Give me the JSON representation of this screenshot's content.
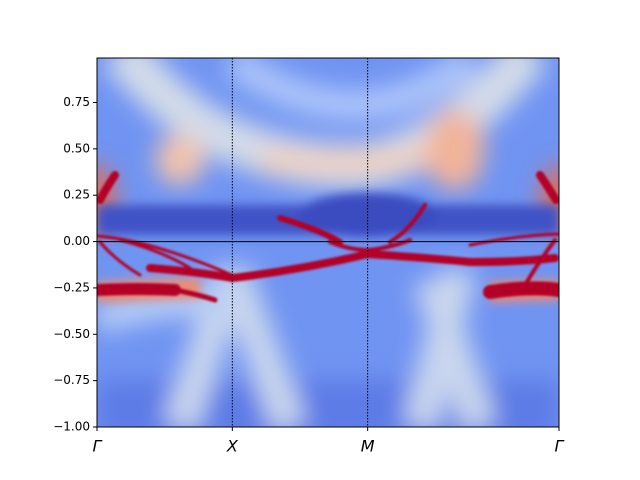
{
  "chart_data": {
    "type": "heatmap",
    "xlim": [
      0,
      3.414
    ],
    "xticks": [
      {
        "value": 0,
        "label": "Γ"
      },
      {
        "value": 1,
        "label": "X"
      },
      {
        "value": 2,
        "label": "M"
      },
      {
        "value": 3.414,
        "label": "Γ"
      }
    ],
    "ylim": [
      -1,
      0.99
    ],
    "yticks": [
      {
        "value": -1,
        "label": "−1.00"
      },
      {
        "value": -0.75,
        "label": "−0.75"
      },
      {
        "value": -0.5,
        "label": "−0.50"
      },
      {
        "value": -0.25,
        "label": "−0.25"
      },
      {
        "value": 0,
        "label": "0.00"
      },
      {
        "value": 0.25,
        "label": "0.25"
      },
      {
        "value": 0.5,
        "label": "0.50"
      },
      {
        "value": 0.75,
        "label": "0.75"
      }
    ],
    "vlines": [
      1,
      2
    ],
    "hline": 0,
    "colormap": "coolwarm"
  }
}
